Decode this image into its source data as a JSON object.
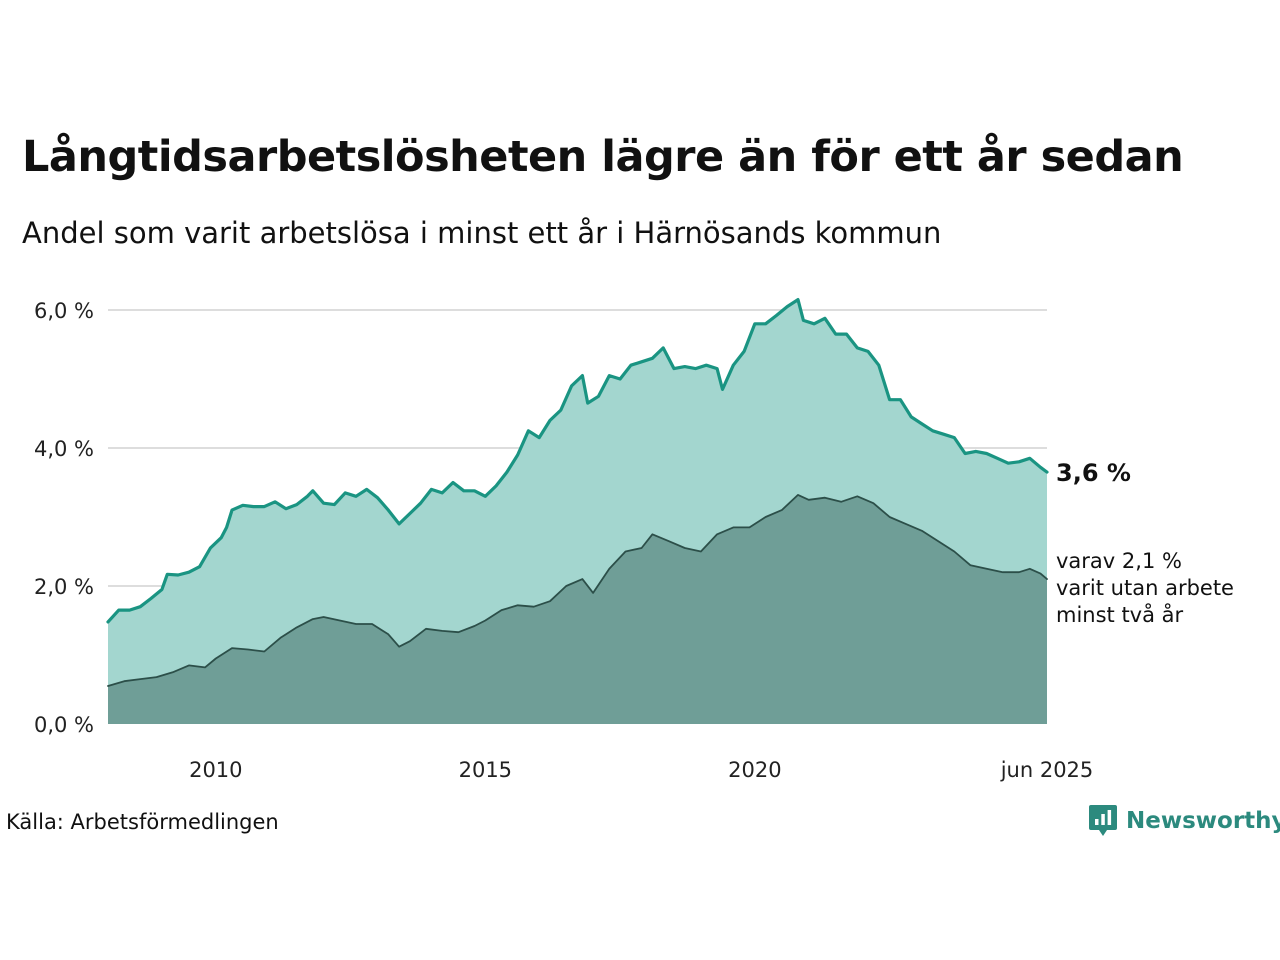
{
  "title": "Långtidsarbetslösheten lägre än för ett år sedan",
  "subtitle": "Andel som varit arbetslösa i minst ett år i Härnösands kommun",
  "source": "Källa: Arbetsförmedlingen",
  "brand": "Newsworthy",
  "colors": {
    "total_line": "#1a9482",
    "total_fill": "#a3d6cf",
    "long_line": "#2c4f49",
    "long_fill": "#6f9e97",
    "grid": "#dddddd"
  },
  "chart_data": {
    "type": "area",
    "y_ticks": [
      {
        "value": 0,
        "label": "0,0 %"
      },
      {
        "value": 2,
        "label": "2,0 %"
      },
      {
        "value": 4,
        "label": "4,0 %"
      },
      {
        "value": 6,
        "label": "6,0 %"
      }
    ],
    "x_ticks": [
      {
        "value": 2010,
        "label": "2010"
      },
      {
        "value": 2015,
        "label": "2015"
      },
      {
        "value": 2020,
        "label": "2020"
      },
      {
        "value": 2025.42,
        "label": "jun 2025"
      }
    ],
    "xlim": [
      2008.0,
      2025.42
    ],
    "ylim": [
      0,
      6.2
    ],
    "grid": true,
    "end_labels": {
      "main": "3,6 %",
      "sub": [
        "varav 2,1 %",
        "varit utan arbete",
        "minst två år"
      ]
    },
    "series": [
      {
        "key": "total",
        "values": [
          [
            2008.0,
            1.48
          ],
          [
            2008.2,
            1.65
          ],
          [
            2008.4,
            1.65
          ],
          [
            2008.6,
            1.7
          ],
          [
            2008.8,
            1.82
          ],
          [
            2009.0,
            1.95
          ],
          [
            2009.1,
            2.17
          ],
          [
            2009.3,
            2.16
          ],
          [
            2009.5,
            2.2
          ],
          [
            2009.7,
            2.28
          ],
          [
            2009.9,
            2.55
          ],
          [
            2010.1,
            2.7
          ],
          [
            2010.2,
            2.85
          ],
          [
            2010.3,
            3.1
          ],
          [
            2010.5,
            3.17
          ],
          [
            2010.7,
            3.15
          ],
          [
            2010.9,
            3.15
          ],
          [
            2011.1,
            3.22
          ],
          [
            2011.3,
            3.12
          ],
          [
            2011.5,
            3.18
          ],
          [
            2011.7,
            3.3
          ],
          [
            2011.8,
            3.38
          ],
          [
            2012.0,
            3.2
          ],
          [
            2012.2,
            3.18
          ],
          [
            2012.4,
            3.35
          ],
          [
            2012.6,
            3.3
          ],
          [
            2012.8,
            3.4
          ],
          [
            2013.0,
            3.28
          ],
          [
            2013.2,
            3.1
          ],
          [
            2013.4,
            2.9
          ],
          [
            2013.6,
            3.05
          ],
          [
            2013.8,
            3.2
          ],
          [
            2014.0,
            3.4
          ],
          [
            2014.2,
            3.35
          ],
          [
            2014.4,
            3.5
          ],
          [
            2014.6,
            3.38
          ],
          [
            2014.8,
            3.38
          ],
          [
            2015.0,
            3.3
          ],
          [
            2015.2,
            3.45
          ],
          [
            2015.4,
            3.65
          ],
          [
            2015.6,
            3.9
          ],
          [
            2015.8,
            4.25
          ],
          [
            2016.0,
            4.15
          ],
          [
            2016.2,
            4.4
          ],
          [
            2016.4,
            4.55
          ],
          [
            2016.6,
            4.9
          ],
          [
            2016.8,
            5.05
          ],
          [
            2016.9,
            4.65
          ],
          [
            2017.1,
            4.75
          ],
          [
            2017.3,
            5.05
          ],
          [
            2017.5,
            5.0
          ],
          [
            2017.7,
            5.2
          ],
          [
            2017.9,
            5.25
          ],
          [
            2018.1,
            5.3
          ],
          [
            2018.3,
            5.45
          ],
          [
            2018.5,
            5.15
          ],
          [
            2018.7,
            5.18
          ],
          [
            2018.9,
            5.15
          ],
          [
            2019.1,
            5.2
          ],
          [
            2019.3,
            5.15
          ],
          [
            2019.4,
            4.85
          ],
          [
            2019.6,
            5.2
          ],
          [
            2019.8,
            5.4
          ],
          [
            2020.0,
            5.8
          ],
          [
            2020.2,
            5.8
          ],
          [
            2020.4,
            5.92
          ],
          [
            2020.6,
            6.05
          ],
          [
            2020.8,
            6.15
          ],
          [
            2020.9,
            5.85
          ],
          [
            2021.1,
            5.8
          ],
          [
            2021.3,
            5.88
          ],
          [
            2021.5,
            5.65
          ],
          [
            2021.7,
            5.65
          ],
          [
            2021.9,
            5.45
          ],
          [
            2022.1,
            5.4
          ],
          [
            2022.3,
            5.2
          ],
          [
            2022.5,
            4.7
          ],
          [
            2022.7,
            4.7
          ],
          [
            2022.9,
            4.45
          ],
          [
            2023.1,
            4.35
          ],
          [
            2023.3,
            4.25
          ],
          [
            2023.5,
            4.2
          ],
          [
            2023.7,
            4.15
          ],
          [
            2023.9,
            3.92
          ],
          [
            2024.1,
            3.95
          ],
          [
            2024.3,
            3.92
          ],
          [
            2024.5,
            3.85
          ],
          [
            2024.7,
            3.78
          ],
          [
            2024.9,
            3.8
          ],
          [
            2025.1,
            3.85
          ],
          [
            2025.3,
            3.72
          ],
          [
            2025.42,
            3.65
          ]
        ]
      },
      {
        "key": "long",
        "values": [
          [
            2008.0,
            0.55
          ],
          [
            2008.3,
            0.62
          ],
          [
            2008.6,
            0.65
          ],
          [
            2008.9,
            0.68
          ],
          [
            2009.2,
            0.75
          ],
          [
            2009.5,
            0.85
          ],
          [
            2009.8,
            0.82
          ],
          [
            2010.0,
            0.95
          ],
          [
            2010.3,
            1.1
          ],
          [
            2010.6,
            1.08
          ],
          [
            2010.9,
            1.05
          ],
          [
            2011.2,
            1.25
          ],
          [
            2011.5,
            1.4
          ],
          [
            2011.8,
            1.52
          ],
          [
            2012.0,
            1.55
          ],
          [
            2012.3,
            1.5
          ],
          [
            2012.6,
            1.45
          ],
          [
            2012.9,
            1.45
          ],
          [
            2013.2,
            1.3
          ],
          [
            2013.4,
            1.12
          ],
          [
            2013.6,
            1.2
          ],
          [
            2013.9,
            1.38
          ],
          [
            2014.2,
            1.35
          ],
          [
            2014.5,
            1.33
          ],
          [
            2014.8,
            1.42
          ],
          [
            2015.0,
            1.5
          ],
          [
            2015.3,
            1.65
          ],
          [
            2015.6,
            1.72
          ],
          [
            2015.9,
            1.7
          ],
          [
            2016.2,
            1.78
          ],
          [
            2016.5,
            2.0
          ],
          [
            2016.8,
            2.1
          ],
          [
            2017.0,
            1.9
          ],
          [
            2017.3,
            2.25
          ],
          [
            2017.6,
            2.5
          ],
          [
            2017.9,
            2.55
          ],
          [
            2018.1,
            2.75
          ],
          [
            2018.4,
            2.65
          ],
          [
            2018.7,
            2.55
          ],
          [
            2019.0,
            2.5
          ],
          [
            2019.3,
            2.75
          ],
          [
            2019.6,
            2.85
          ],
          [
            2019.9,
            2.85
          ],
          [
            2020.2,
            3.0
          ],
          [
            2020.5,
            3.1
          ],
          [
            2020.8,
            3.32
          ],
          [
            2021.0,
            3.25
          ],
          [
            2021.3,
            3.28
          ],
          [
            2021.6,
            3.22
          ],
          [
            2021.9,
            3.3
          ],
          [
            2022.2,
            3.2
          ],
          [
            2022.5,
            3.0
          ],
          [
            2022.8,
            2.9
          ],
          [
            2023.1,
            2.8
          ],
          [
            2023.4,
            2.65
          ],
          [
            2023.7,
            2.5
          ],
          [
            2024.0,
            2.3
          ],
          [
            2024.3,
            2.25
          ],
          [
            2024.6,
            2.2
          ],
          [
            2024.9,
            2.2
          ],
          [
            2025.1,
            2.25
          ],
          [
            2025.3,
            2.18
          ],
          [
            2025.42,
            2.1
          ]
        ]
      }
    ]
  }
}
